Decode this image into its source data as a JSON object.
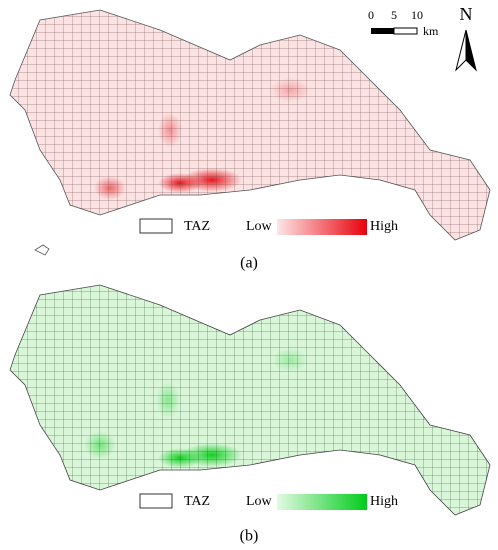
{
  "scale_bar": {
    "ticks": [
      0,
      5,
      10
    ],
    "unit": "km"
  },
  "north_arrow": "N",
  "panels": [
    {
      "caption": "(a)",
      "legend": {
        "box_label": "TAZ",
        "low": "Low",
        "high": "High"
      }
    },
    {
      "caption": "(b)",
      "legend": {
        "box_label": "TAZ",
        "low": "Low",
        "high": "High"
      }
    }
  ]
}
